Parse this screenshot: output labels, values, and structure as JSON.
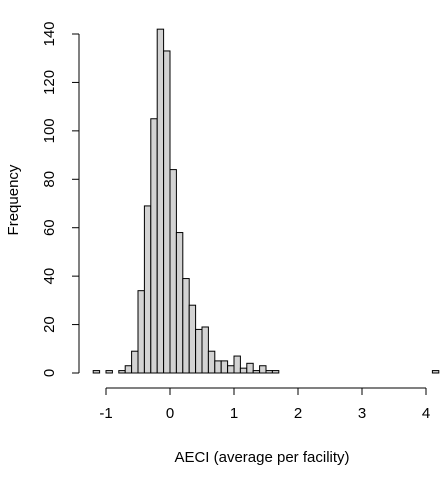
{
  "chart_data": {
    "type": "histogram",
    "title": "",
    "xlabel": "AECI (average per facility)",
    "ylabel": "Frequency",
    "bin_width": 0.1,
    "bin_start": -1.2,
    "counts": [
      1,
      0,
      1,
      0,
      1,
      3,
      9,
      34,
      69,
      105,
      142,
      133,
      84,
      58,
      39,
      28,
      18,
      19,
      9,
      5,
      5,
      3,
      7,
      2,
      4,
      1,
      3,
      1,
      1,
      0,
      0,
      0,
      0,
      0,
      0,
      0,
      0,
      0,
      0,
      0,
      0,
      0,
      0,
      0,
      0,
      0,
      0,
      0,
      0,
      0,
      0,
      0,
      0,
      1
    ],
    "xlim": [
      -1.2,
      4.1
    ],
    "ylim": [
      0,
      140
    ],
    "x_ticks": [
      -1,
      0,
      1,
      2,
      3,
      4
    ],
    "y_ticks": [
      0,
      20,
      40,
      60,
      80,
      100,
      120,
      140
    ],
    "bar_color": "#d3d3d3",
    "edge_color": "#000000",
    "grid": false
  }
}
